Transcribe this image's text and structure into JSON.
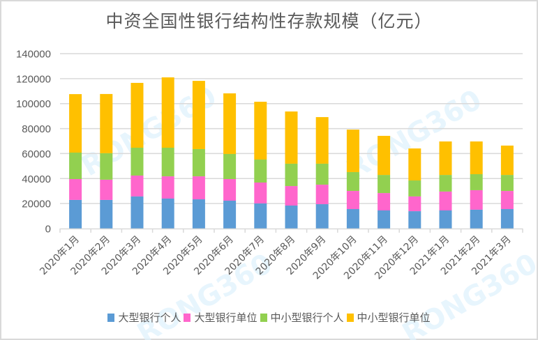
{
  "chart_data": {
    "type": "bar",
    "stacked": true,
    "title": "中资全国性银行结构性存款规模（亿元）",
    "xlabel": "",
    "ylabel": "",
    "ylim": [
      0,
      140000
    ],
    "yticks": [
      0,
      20000,
      40000,
      60000,
      80000,
      100000,
      120000,
      140000
    ],
    "ytick_labels": [
      "0",
      "20000",
      "40000",
      "60000",
      "80000",
      "100000",
      "120000",
      "140000"
    ],
    "grid": true,
    "legend_position": "bottom",
    "categories": [
      "2020年1月",
      "2020年2月",
      "2020年3月",
      "2020年4月",
      "2020年5月",
      "2020年6月",
      "2020年7月",
      "2020年8月",
      "2020年9月",
      "2020年10月",
      "2020年11月",
      "2020年12月",
      "2021年1月",
      "2021年2月",
      "2021年3月"
    ],
    "series": [
      {
        "name": "大型银行个人",
        "color": "#5B9BD5",
        "values": [
          22900,
          22900,
          25700,
          24000,
          23400,
          22300,
          20100,
          18400,
          19500,
          15600,
          14500,
          13900,
          14500,
          15100,
          15600
        ]
      },
      {
        "name": "大型银行单位",
        "color": "#FF66CC",
        "values": [
          16700,
          16200,
          16700,
          17800,
          18400,
          17300,
          16700,
          15600,
          15600,
          14500,
          13900,
          11800,
          15100,
          15600,
          14500
        ]
      },
      {
        "name": "中小型银行个人",
        "color": "#92D050",
        "values": [
          21200,
          21200,
          22300,
          22900,
          21800,
          20100,
          18400,
          17900,
          16800,
          15100,
          14500,
          12800,
          13300,
          12800,
          12800
        ]
      },
      {
        "name": "中小型银行单位",
        "color": "#FFC000",
        "values": [
          46800,
          47400,
          51900,
          56300,
          54600,
          48500,
          46300,
          41800,
          37300,
          34000,
          31300,
          25600,
          26800,
          26200,
          23500
        ]
      }
    ]
  },
  "watermark": "RONG360"
}
